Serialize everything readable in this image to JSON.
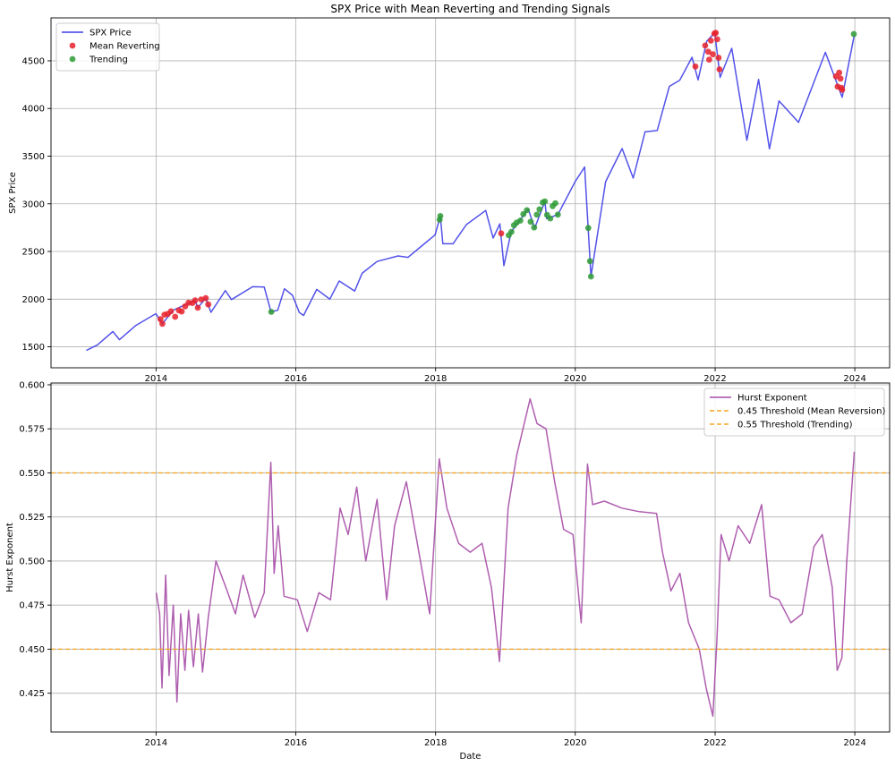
{
  "chart_data": [
    {
      "type": "line",
      "title": "SPX Price with Mean Reverting and Trending Signals",
      "xlabel": "",
      "ylabel": "SPX Price",
      "xlim": [
        "2012-07-01",
        "2024-07-01"
      ],
      "ylim": [
        1280,
        4950
      ],
      "x_ticks": [
        "2014",
        "2016",
        "2018",
        "2020",
        "2022",
        "2024"
      ],
      "y_ticks": [
        1500,
        2000,
        2500,
        3000,
        3500,
        4000,
        4500
      ],
      "grid": true,
      "legend_position": "upper-left",
      "series": [
        {
          "name": "SPX Price",
          "kind": "line",
          "color": "#3f3fe8",
          "points": [
            [
              "2013-01-02",
              1462
            ],
            [
              "2013-03-01",
              1520
            ],
            [
              "2013-05-20",
              1660
            ],
            [
              "2013-06-24",
              1575
            ],
            [
              "2013-09-18",
              1725
            ],
            [
              "2013-12-31",
              1848
            ],
            [
              "2014-02-03",
              1742
            ],
            [
              "2014-04-01",
              1885
            ],
            [
              "2014-07-24",
              1987
            ],
            [
              "2014-08-07",
              1910
            ],
            [
              "2014-09-18",
              2010
            ],
            [
              "2014-10-15",
              1862
            ],
            [
              "2014-12-29",
              2090
            ],
            [
              "2015-01-30",
              1995
            ],
            [
              "2015-05-21",
              2130
            ],
            [
              "2015-07-20",
              2128
            ],
            [
              "2015-08-25",
              1867
            ],
            [
              "2015-09-29",
              1884
            ],
            [
              "2015-11-03",
              2109
            ],
            [
              "2015-12-15",
              2040
            ],
            [
              "2016-01-20",
              1859
            ],
            [
              "2016-02-11",
              1829
            ],
            [
              "2016-04-20",
              2102
            ],
            [
              "2016-06-27",
              2000
            ],
            [
              "2016-08-15",
              2190
            ],
            [
              "2016-11-04",
              2085
            ],
            [
              "2016-12-13",
              2271
            ],
            [
              "2017-03-01",
              2395
            ],
            [
              "2017-06-19",
              2453
            ],
            [
              "2017-08-10",
              2438
            ],
            [
              "2017-10-31",
              2575
            ],
            [
              "2017-12-29",
              2673
            ],
            [
              "2018-01-26",
              2872
            ],
            [
              "2018-02-08",
              2581
            ],
            [
              "2018-04-02",
              2581
            ],
            [
              "2018-06-11",
              2782
            ],
            [
              "2018-09-20",
              2930
            ],
            [
              "2018-10-29",
              2641
            ],
            [
              "2018-12-03",
              2790
            ],
            [
              "2018-12-24",
              2351
            ],
            [
              "2019-01-31",
              2704
            ],
            [
              "2019-04-30",
              2945
            ],
            [
              "2019-06-03",
              2744
            ],
            [
              "2019-07-26",
              3025
            ],
            [
              "2019-08-05",
              2844
            ],
            [
              "2019-10-02",
              2887
            ],
            [
              "2019-12-31",
              3230
            ],
            [
              "2020-02-19",
              3386
            ],
            [
              "2020-03-23",
              2237
            ],
            [
              "2020-06-08",
              3232
            ],
            [
              "2020-09-02",
              3580
            ],
            [
              "2020-10-30",
              3270
            ],
            [
              "2020-12-31",
              3756
            ],
            [
              "2021-03-04",
              3768
            ],
            [
              "2021-05-07",
              4232
            ],
            [
              "2021-06-30",
              4297
            ],
            [
              "2021-09-02",
              4537
            ],
            [
              "2021-10-04",
              4300
            ],
            [
              "2021-11-18",
              4704
            ],
            [
              "2021-12-30",
              4796
            ],
            [
              "2022-01-27",
              4326
            ],
            [
              "2022-03-29",
              4631
            ],
            [
              "2022-06-16",
              3667
            ],
            [
              "2022-08-16",
              4305
            ],
            [
              "2022-10-12",
              3577
            ],
            [
              "2022-12-01",
              4080
            ],
            [
              "2023-03-13",
              3855
            ],
            [
              "2023-07-31",
              4589
            ],
            [
              "2023-10-27",
              4117
            ],
            [
              "2023-12-29",
              4770
            ]
          ]
        },
        {
          "name": "Mean Reverting",
          "kind": "scatter",
          "color": "#e8212b",
          "points": [
            [
              "2014-01-24",
              1790
            ],
            [
              "2014-02-03",
              1742
            ],
            [
              "2014-02-14",
              1838
            ],
            [
              "2014-03-03",
              1845
            ],
            [
              "2014-03-20",
              1872
            ],
            [
              "2014-04-11",
              1815
            ],
            [
              "2014-04-30",
              1883
            ],
            [
              "2014-05-15",
              1870
            ],
            [
              "2014-06-02",
              1925
            ],
            [
              "2014-06-20",
              1962
            ],
            [
              "2014-07-10",
              1960
            ],
            [
              "2014-07-24",
              1987
            ],
            [
              "2014-08-07",
              1910
            ],
            [
              "2014-08-25",
              1997
            ],
            [
              "2014-09-18",
              2010
            ],
            [
              "2014-10-01",
              1945
            ],
            [
              "2018-12-10",
              2690
            ],
            [
              "2021-09-20",
              4440
            ],
            [
              "2021-11-10",
              4660
            ],
            [
              "2021-11-26",
              4595
            ],
            [
              "2021-12-01",
              4513
            ],
            [
              "2021-12-10",
              4712
            ],
            [
              "2021-12-20",
              4568
            ],
            [
              "2021-12-28",
              4786
            ],
            [
              "2022-01-04",
              4793
            ],
            [
              "2022-01-12",
              4726
            ],
            [
              "2022-01-19",
              4532
            ],
            [
              "2022-01-24",
              4410
            ],
            [
              "2023-09-25",
              4337
            ],
            [
              "2023-10-03",
              4229
            ],
            [
              "2023-10-11",
              4376
            ],
            [
              "2023-10-18",
              4314
            ],
            [
              "2023-10-23",
              4217
            ],
            [
              "2023-10-27",
              4195
            ]
          ]
        },
        {
          "name": "Trending",
          "kind": "scatter",
          "color": "#2e9b35",
          "points": [
            [
              "2015-08-26",
              1867
            ],
            [
              "2018-01-22",
              2833
            ],
            [
              "2018-01-26",
              2872
            ],
            [
              "2019-01-18",
              2670
            ],
            [
              "2019-02-01",
              2706
            ],
            [
              "2019-02-15",
              2775
            ],
            [
              "2019-03-01",
              2803
            ],
            [
              "2019-03-20",
              2824
            ],
            [
              "2019-04-05",
              2892
            ],
            [
              "2019-04-23",
              2933
            ],
            [
              "2019-05-13",
              2812
            ],
            [
              "2019-05-31",
              2752
            ],
            [
              "2019-06-14",
              2886
            ],
            [
              "2019-06-28",
              2942
            ],
            [
              "2019-07-15",
              3014
            ],
            [
              "2019-07-26",
              3025
            ],
            [
              "2019-08-07",
              2883
            ],
            [
              "2019-08-23",
              2847
            ],
            [
              "2019-09-05",
              2976
            ],
            [
              "2019-09-19",
              3006
            ],
            [
              "2019-10-02",
              2887
            ],
            [
              "2020-03-09",
              2746
            ],
            [
              "2020-03-18",
              2398
            ],
            [
              "2020-03-23",
              2237
            ],
            [
              "2023-12-27",
              4781
            ]
          ]
        }
      ]
    },
    {
      "type": "line",
      "title": "",
      "xlabel": "Date",
      "ylabel": "Hurst Exponent",
      "xlim": [
        "2012-07-01",
        "2024-07-01"
      ],
      "ylim": [
        0.403,
        0.601
      ],
      "x_ticks": [
        "2014",
        "2016",
        "2018",
        "2020",
        "2022",
        "2024"
      ],
      "y_ticks": [
        0.425,
        0.45,
        0.475,
        0.5,
        0.525,
        0.55,
        0.575,
        0.6
      ],
      "y_tick_labels": [
        "0.425",
        "0.450",
        "0.475",
        "0.500",
        "0.525",
        "0.550",
        "0.575",
        "0.600"
      ],
      "grid": true,
      "legend_position": "upper-right",
      "series": [
        {
          "name": "Hurst Exponent",
          "kind": "line",
          "color": "#a64ca6",
          "points": [
            [
              "2014-01-02",
              0.482
            ],
            [
              "2014-01-20",
              0.47
            ],
            [
              "2014-02-01",
              0.428
            ],
            [
              "2014-02-20",
              0.492
            ],
            [
              "2014-03-10",
              0.435
            ],
            [
              "2014-04-01",
              0.475
            ],
            [
              "2014-04-20",
              0.42
            ],
            [
              "2014-05-10",
              0.47
            ],
            [
              "2014-06-01",
              0.438
            ],
            [
              "2014-06-20",
              0.472
            ],
            [
              "2014-07-15",
              0.44
            ],
            [
              "2014-08-10",
              0.47
            ],
            [
              "2014-09-01",
              0.437
            ],
            [
              "2014-10-01",
              0.468
            ],
            [
              "2014-11-10",
              0.5
            ],
            [
              "2015-01-01",
              0.485
            ],
            [
              "2015-02-20",
              0.47
            ],
            [
              "2015-04-01",
              0.492
            ],
            [
              "2015-06-01",
              0.468
            ],
            [
              "2015-07-20",
              0.482
            ],
            [
              "2015-08-24",
              0.556
            ],
            [
              "2015-09-10",
              0.493
            ],
            [
              "2015-10-01",
              0.52
            ],
            [
              "2015-11-01",
              0.48
            ],
            [
              "2016-01-10",
              0.478
            ],
            [
              "2016-03-01",
              0.46
            ],
            [
              "2016-05-01",
              0.482
            ],
            [
              "2016-07-01",
              0.478
            ],
            [
              "2016-08-20",
              0.53
            ],
            [
              "2016-10-01",
              0.515
            ],
            [
              "2016-11-15",
              0.542
            ],
            [
              "2017-01-01",
              0.5
            ],
            [
              "2017-03-01",
              0.535
            ],
            [
              "2017-04-20",
              0.478
            ],
            [
              "2017-06-01",
              0.52
            ],
            [
              "2017-08-01",
              0.545
            ],
            [
              "2017-10-01",
              0.508
            ],
            [
              "2017-12-01",
              0.47
            ],
            [
              "2018-01-20",
              0.558
            ],
            [
              "2018-03-01",
              0.53
            ],
            [
              "2018-05-01",
              0.51
            ],
            [
              "2018-07-01",
              0.505
            ],
            [
              "2018-09-01",
              0.51
            ],
            [
              "2018-10-20",
              0.485
            ],
            [
              "2018-12-01",
              0.443
            ],
            [
              "2019-01-15",
              0.53
            ],
            [
              "2019-03-01",
              0.56
            ],
            [
              "2019-05-10",
              0.592
            ],
            [
              "2019-06-15",
              0.578
            ],
            [
              "2019-08-01",
              0.575
            ],
            [
              "2019-09-15",
              0.545
            ],
            [
              "2019-11-01",
              0.518
            ],
            [
              "2019-12-20",
              0.515
            ],
            [
              "2020-02-01",
              0.465
            ],
            [
              "2020-03-05",
              0.555
            ],
            [
              "2020-04-01",
              0.532
            ],
            [
              "2020-06-01",
              0.534
            ],
            [
              "2020-09-01",
              0.53
            ],
            [
              "2020-12-01",
              0.528
            ],
            [
              "2021-03-01",
              0.527
            ],
            [
              "2021-04-01",
              0.505
            ],
            [
              "2021-05-15",
              0.483
            ],
            [
              "2021-07-01",
              0.493
            ],
            [
              "2021-08-15",
              0.465
            ],
            [
              "2021-10-10",
              0.45
            ],
            [
              "2021-11-15",
              0.428
            ],
            [
              "2021-12-20",
              0.412
            ],
            [
              "2022-01-10",
              0.455
            ],
            [
              "2022-02-01",
              0.515
            ],
            [
              "2022-03-15",
              0.5
            ],
            [
              "2022-05-01",
              0.52
            ],
            [
              "2022-07-01",
              0.51
            ],
            [
              "2022-09-01",
              0.532
            ],
            [
              "2022-10-15",
              0.48
            ],
            [
              "2022-12-01",
              0.478
            ],
            [
              "2023-02-01",
              0.465
            ],
            [
              "2023-04-01",
              0.47
            ],
            [
              "2023-06-01",
              0.508
            ],
            [
              "2023-07-15",
              0.515
            ],
            [
              "2023-08-10",
              0.5
            ],
            [
              "2023-09-05",
              0.485
            ],
            [
              "2023-10-01",
              0.438
            ],
            [
              "2023-10-25",
              0.445
            ],
            [
              "2023-11-20",
              0.5
            ],
            [
              "2023-12-29",
              0.562
            ]
          ]
        },
        {
          "name": "0.45 Threshold (Mean Reversion)",
          "kind": "hline",
          "color": "#f5a623",
          "value": 0.45
        },
        {
          "name": "0.55 Threshold (Trending)",
          "kind": "hline",
          "color": "#f5a623",
          "value": 0.55
        }
      ]
    }
  ]
}
